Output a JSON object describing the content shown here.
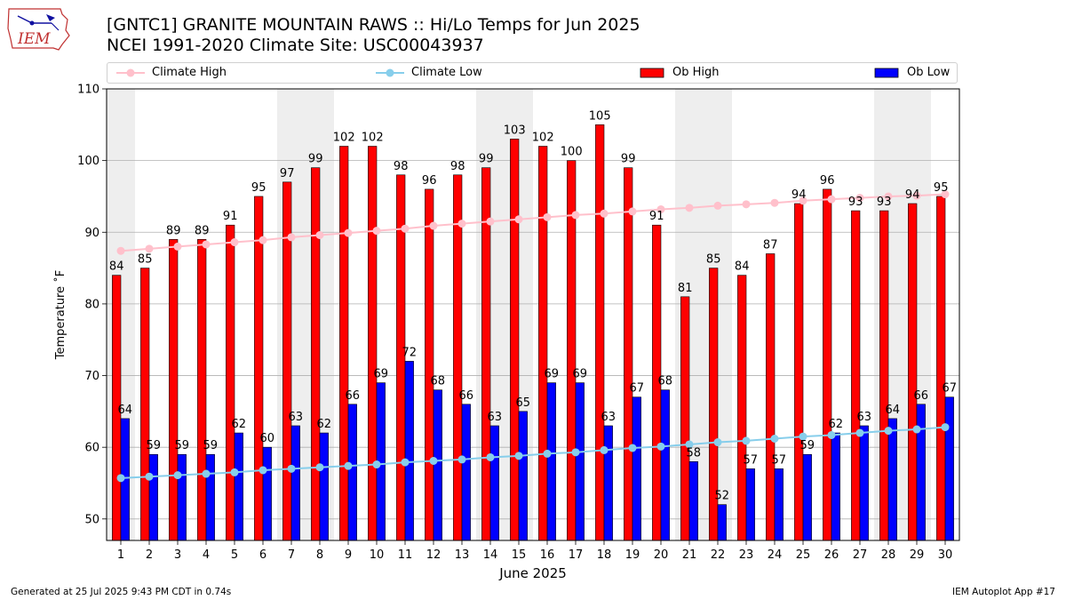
{
  "header": {
    "title_line1": "[GNTC1] GRANITE MOUNTAIN RAWS :: Hi/Lo Temps for Jun 2025",
    "title_line2": "NCEI 1991-2020 Climate Site: USC00043937",
    "logo_text": "IEM"
  },
  "footer": {
    "generated": "Generated at 25 Jul 2025 9:43 PM CDT in 0.74s",
    "app": "IEM Autoplot App #17"
  },
  "colors": {
    "ob_high": "#ff0000",
    "ob_low": "#0000ff",
    "climate_high": "#ffc0cb",
    "climate_low": "#87ceeb",
    "weekend_band": "#eeeeee",
    "grid": "#b0b0b0"
  },
  "chart_data": {
    "type": "bar",
    "xlabel": "June 2025",
    "ylabel": "Temperature ˚F",
    "ylim": [
      47,
      110
    ],
    "yticks": [
      50,
      60,
      70,
      80,
      90,
      100,
      110
    ],
    "grid": "horizontal",
    "legend_placement": "top",
    "categories": [
      "1",
      "2",
      "3",
      "4",
      "5",
      "6",
      "7",
      "8",
      "9",
      "10",
      "11",
      "12",
      "13",
      "14",
      "15",
      "16",
      "17",
      "18",
      "19",
      "20",
      "21",
      "22",
      "23",
      "24",
      "25",
      "26",
      "27",
      "28",
      "29",
      "30"
    ],
    "weekend_days": [
      1,
      7,
      8,
      14,
      15,
      21,
      22,
      28,
      29
    ],
    "series": [
      {
        "name": "Ob High",
        "kind": "bar",
        "values": [
          84,
          85,
          89,
          89,
          91,
          95,
          97,
          99,
          102,
          102,
          98,
          96,
          98,
          99,
          103,
          102,
          100,
          105,
          99,
          91,
          81,
          85,
          84,
          87,
          94,
          96,
          93,
          93,
          94,
          95
        ]
      },
      {
        "name": "Ob Low",
        "kind": "bar",
        "values": [
          64,
          59,
          59,
          59,
          62,
          60,
          63,
          62,
          66,
          69,
          72,
          68,
          66,
          63,
          65,
          69,
          69,
          63,
          67,
          68,
          58,
          52,
          57,
          57,
          59,
          62,
          63,
          64,
          66,
          67
        ]
      },
      {
        "name": "Climate High",
        "kind": "line",
        "values": [
          87.4,
          87.7,
          88.0,
          88.3,
          88.6,
          88.9,
          89.3,
          89.6,
          89.9,
          90.2,
          90.5,
          90.9,
          91.2,
          91.5,
          91.8,
          92.1,
          92.4,
          92.6,
          92.9,
          93.2,
          93.4,
          93.7,
          93.9,
          94.1,
          94.4,
          94.6,
          94.8,
          95.0,
          95.1,
          95.3
        ]
      },
      {
        "name": "Climate Low",
        "kind": "line",
        "values": [
          55.7,
          55.9,
          56.1,
          56.3,
          56.5,
          56.8,
          57.0,
          57.2,
          57.4,
          57.6,
          57.9,
          58.1,
          58.3,
          58.6,
          58.8,
          59.1,
          59.3,
          59.6,
          59.9,
          60.1,
          60.4,
          60.7,
          60.9,
          61.2,
          61.5,
          61.7,
          62.0,
          62.3,
          62.5,
          62.8
        ]
      }
    ]
  }
}
